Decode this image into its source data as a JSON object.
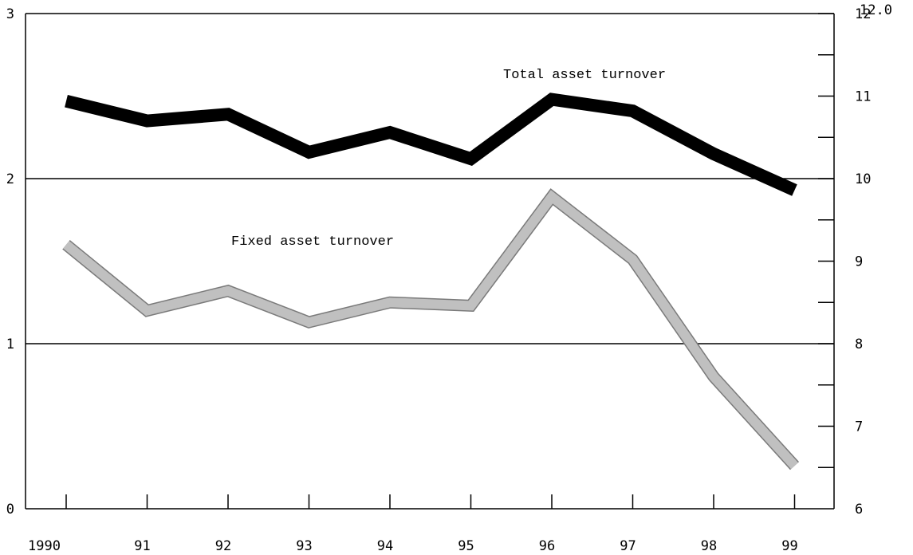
{
  "chart_data": {
    "type": "line",
    "x": [
      "1990",
      "91",
      "92",
      "93",
      "94",
      "95",
      "96",
      "97",
      "98",
      "99"
    ],
    "y_left_lim": [
      0,
      3
    ],
    "y_left_ticks": [
      "0",
      "1",
      "2",
      "3"
    ],
    "y_right_lim": [
      6,
      12
    ],
    "y_right_ticks": [
      "6",
      "7",
      "8",
      "9",
      "10",
      "11",
      "12"
    ],
    "right_clipped_text": "12.0",
    "grid": "horizontal at 1 and 2",
    "series": [
      {
        "name": "Total asset turnover",
        "axis": "left",
        "color": "#000000",
        "values": [
          2.47,
          2.35,
          2.39,
          2.16,
          2.28,
          2.12,
          2.48,
          2.41,
          2.15,
          1.93
        ]
      },
      {
        "name": "Fixed asset turnover",
        "axis": "left",
        "color": "#c0c0c0",
        "values": [
          1.6,
          1.2,
          1.32,
          1.13,
          1.25,
          1.23,
          1.89,
          1.51,
          0.8,
          0.26
        ]
      }
    ]
  }
}
